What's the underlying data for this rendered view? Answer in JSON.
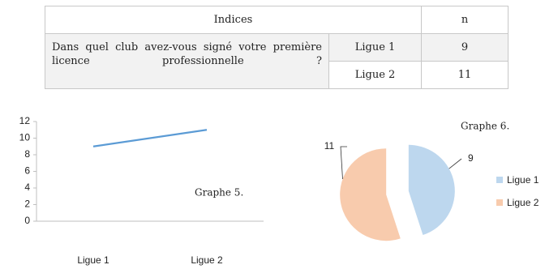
{
  "table": {
    "header": [
      "Indices",
      "n"
    ],
    "question": "Dans quel club avez-vous signé votre première licence professionnelle ?",
    "rows": [
      [
        "Ligue 1",
        9
      ],
      [
        "Ligue 2",
        11
      ]
    ]
  },
  "chart_data": [
    {
      "type": "line",
      "annotation": "Graphe 5.",
      "categories": [
        "Ligue 1",
        "Ligue 2"
      ],
      "values": [
        9,
        11
      ],
      "color": "#5b9bd5",
      "ylim": [
        0,
        12
      ],
      "yticks": [
        0,
        2,
        4,
        6,
        8,
        10,
        12
      ],
      "grid": false
    },
    {
      "type": "pie",
      "annotation": "Graphe 6.",
      "categories": [
        "Ligue 1",
        "Ligue 2"
      ],
      "values": [
        9,
        11
      ],
      "colors": [
        "#bdd7ee",
        "#f8cbad"
      ],
      "legend": "right"
    }
  ]
}
